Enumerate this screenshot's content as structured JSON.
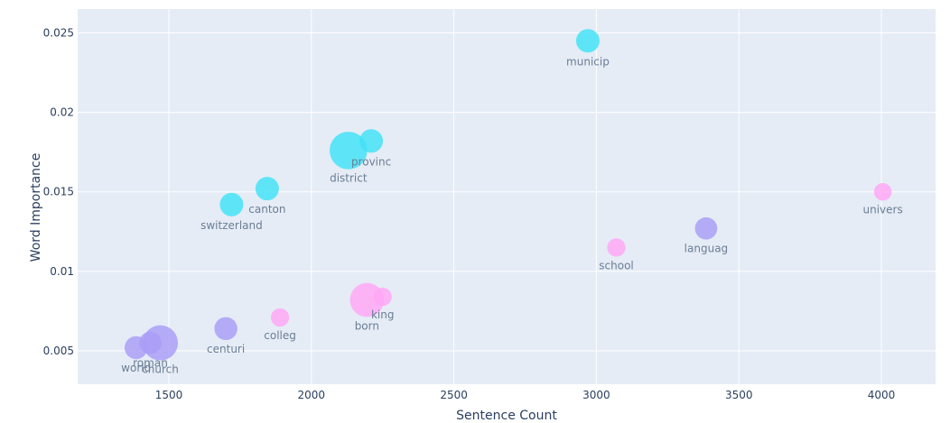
{
  "chart_data": {
    "type": "scatter",
    "xlabel": "Sentence Count",
    "ylabel": "Word Importance",
    "xlim": [
      1180,
      4190
    ],
    "ylim": [
      0.0029,
      0.0265
    ],
    "x_ticks": [
      1500,
      2000,
      2500,
      3000,
      3500,
      4000
    ],
    "x_tick_labels": [
      "1500",
      "2000",
      "2500",
      "3000",
      "3500",
      "4000"
    ],
    "y_ticks": [
      0.005,
      0.01,
      0.015,
      0.02,
      0.025
    ],
    "y_tick_labels": [
      "0.005",
      "0.01",
      "0.015",
      "0.02",
      "0.025"
    ],
    "grid": true,
    "colors": {
      "cyan": "#3fe2f7",
      "purple": "#a89cf7",
      "pink": "#ffa6f5",
      "plot_bg": "#e5ecf6",
      "grid": "#ffffff",
      "text": "#2a3f5f"
    },
    "points": [
      {
        "label": "municip",
        "x": 2970,
        "y": 0.0245,
        "size": 1.0,
        "color": "cyan",
        "label_pos": "below"
      },
      {
        "label": "provinc",
        "x": 2210,
        "y": 0.0182,
        "size": 1.0,
        "color": "cyan",
        "label_pos": "below"
      },
      {
        "label": "district",
        "x": 2130,
        "y": 0.0176,
        "size": 1.6,
        "color": "cyan",
        "label_pos": "below"
      },
      {
        "label": "canton",
        "x": 1845,
        "y": 0.0152,
        "size": 1.0,
        "color": "cyan",
        "label_pos": "below"
      },
      {
        "label": "switzerland",
        "x": 1720,
        "y": 0.0142,
        "size": 1.0,
        "color": "cyan",
        "label_pos": "below"
      },
      {
        "label": "univers",
        "x": 4005,
        "y": 0.015,
        "size": 0.75,
        "color": "pink",
        "label_pos": "below"
      },
      {
        "label": "languag",
        "x": 3385,
        "y": 0.0127,
        "size": 0.95,
        "color": "purple",
        "label_pos": "below"
      },
      {
        "label": "school",
        "x": 3070,
        "y": 0.0115,
        "size": 0.78,
        "color": "pink",
        "label_pos": "below"
      },
      {
        "label": "king",
        "x": 2250,
        "y": 0.0084,
        "size": 0.78,
        "color": "pink",
        "label_pos": "below"
      },
      {
        "label": "born",
        "x": 2195,
        "y": 0.0082,
        "size": 1.45,
        "color": "pink",
        "label_pos": "below"
      },
      {
        "label": "colleg",
        "x": 1890,
        "y": 0.0071,
        "size": 0.78,
        "color": "pink",
        "label_pos": "below"
      },
      {
        "label": "centuri",
        "x": 1700,
        "y": 0.0064,
        "size": 0.98,
        "color": "purple",
        "label_pos": "below"
      },
      {
        "label": "church",
        "x": 1470,
        "y": 0.0055,
        "size": 1.5,
        "color": "purple",
        "label_pos": "below"
      },
      {
        "label": "roman",
        "x": 1435,
        "y": 0.0055,
        "size": 0.95,
        "color": "purple",
        "label_pos": "below"
      },
      {
        "label": "world",
        "x": 1385,
        "y": 0.0052,
        "size": 0.98,
        "color": "purple",
        "label_pos": "below"
      }
    ]
  }
}
